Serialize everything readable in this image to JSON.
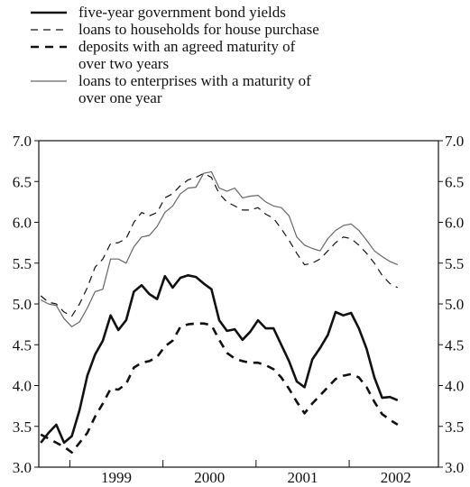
{
  "chart_data": {
    "type": "line",
    "x_ticks": [
      "1999",
      "2000",
      "2001",
      "2002"
    ],
    "y_ticks": [
      "3.0",
      "3.5",
      "4.0",
      "4.5",
      "5.0",
      "5.5",
      "6.0",
      "6.5",
      "7.0"
    ],
    "ylim": [
      3.0,
      7.0
    ],
    "x_start": "1998-09",
    "x_end": "2002-12",
    "grid": false,
    "legend_position": "top-left",
    "series": [
      {
        "name": "five-year government bond yields",
        "style": "thick-solid",
        "color": "#111111",
        "values": [
          3.3,
          3.42,
          3.52,
          3.3,
          3.38,
          3.7,
          4.12,
          4.38,
          4.55,
          4.86,
          4.68,
          4.8,
          5.15,
          5.23,
          5.12,
          5.06,
          5.34,
          5.2,
          5.32,
          5.35,
          5.33,
          5.25,
          5.18,
          4.8,
          4.67,
          4.69,
          4.56,
          4.66,
          4.8,
          4.7,
          4.7,
          4.5,
          4.3,
          4.05,
          3.98,
          4.32,
          4.46,
          4.62,
          4.9,
          4.86,
          4.89,
          4.7,
          4.45,
          4.1,
          3.85,
          3.86,
          3.82
        ]
      },
      {
        "name": "loans to households for house purchase",
        "style": "thin-dashed",
        "color": "#111111",
        "values": [
          5.1,
          5.02,
          5.0,
          4.9,
          4.85,
          5.0,
          5.2,
          5.45,
          5.55,
          5.74,
          5.75,
          5.8,
          6.0,
          6.12,
          6.08,
          6.12,
          6.3,
          6.35,
          6.45,
          6.52,
          6.55,
          6.6,
          6.55,
          6.35,
          6.25,
          6.2,
          6.15,
          6.15,
          6.18,
          6.1,
          6.05,
          5.92,
          5.78,
          5.62,
          5.48,
          5.5,
          5.55,
          5.65,
          5.75,
          5.82,
          5.8,
          5.72,
          5.62,
          5.5,
          5.35,
          5.25,
          5.2
        ]
      },
      {
        "name": "deposits with an agreed maturity of over two years",
        "style": "thick-dashed",
        "color": "#111111",
        "values": [
          3.4,
          3.35,
          3.3,
          3.25,
          3.18,
          3.3,
          3.42,
          3.62,
          3.78,
          3.96,
          3.95,
          4.02,
          4.22,
          4.28,
          4.3,
          4.35,
          4.48,
          4.55,
          4.72,
          4.75,
          4.76,
          4.76,
          4.74,
          4.56,
          4.4,
          4.33,
          4.3,
          4.28,
          4.28,
          4.25,
          4.2,
          4.1,
          3.96,
          3.8,
          3.66,
          3.78,
          3.88,
          3.98,
          4.08,
          4.12,
          4.14,
          4.1,
          3.98,
          3.8,
          3.65,
          3.58,
          3.52
        ]
      },
      {
        "name": "loans to enterprises with a maturity of over one year",
        "style": "thin-solid",
        "color": "#666666",
        "values": [
          5.05,
          5.0,
          4.98,
          4.82,
          4.72,
          4.78,
          4.95,
          5.15,
          5.18,
          5.55,
          5.55,
          5.5,
          5.7,
          5.82,
          5.84,
          5.95,
          6.12,
          6.2,
          6.35,
          6.42,
          6.43,
          6.6,
          6.62,
          6.42,
          6.38,
          6.42,
          6.3,
          6.32,
          6.33,
          6.25,
          6.2,
          6.18,
          6.08,
          5.82,
          5.72,
          5.68,
          5.65,
          5.8,
          5.9,
          5.96,
          5.98,
          5.9,
          5.78,
          5.65,
          5.58,
          5.52,
          5.48
        ]
      }
    ]
  },
  "legend_lines": [
    [
      "five-year government bond yields"
    ],
    [
      "loans to households for house purchase"
    ],
    [
      "deposits with an agreed maturity of",
      "over two years"
    ],
    [
      "loans to enterprises with a maturity of",
      "over one year"
    ]
  ]
}
